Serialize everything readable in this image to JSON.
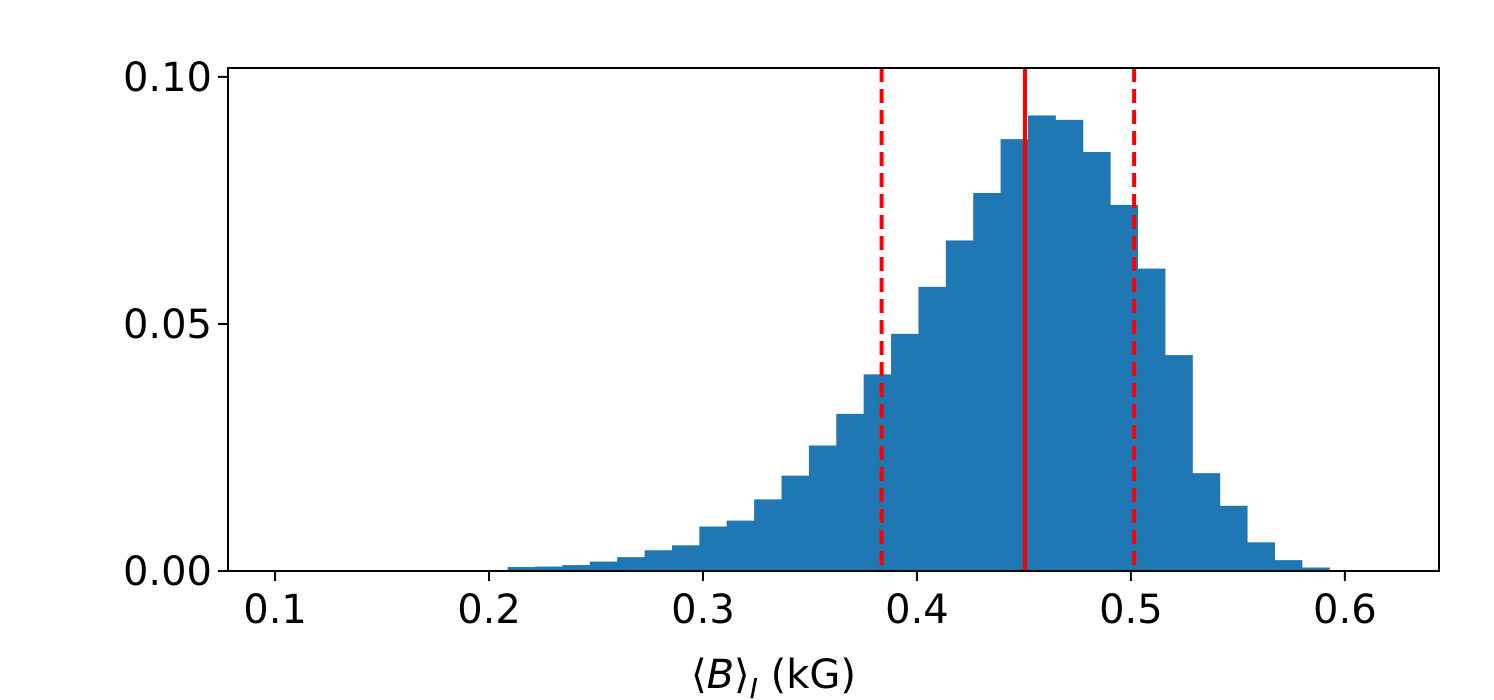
{
  "chart_data": {
    "type": "bar",
    "title": "",
    "xlabel": "⟨B⟩I (kG)",
    "xlabel_parts": {
      "open": "⟨",
      "var": "B",
      "close": "⟩",
      "sub": "I",
      "unit": " (kG)"
    },
    "ylabel": "",
    "xlim": [
      0.078,
      0.644
    ],
    "ylim": [
      0.0,
      0.1018
    ],
    "xticks": [
      0.1,
      0.2,
      0.3,
      0.4,
      0.5,
      0.6
    ],
    "xtick_labels": [
      "0.1",
      "0.2",
      "0.3",
      "0.4",
      "0.5",
      "0.6"
    ],
    "yticks": [
      0.0,
      0.05,
      0.1
    ],
    "ytick_labels": [
      "0.00",
      "0.05",
      "0.10"
    ],
    "grid": false,
    "bar_color": "#1f77b4",
    "bin_edges": [
      0.0935,
      0.1063,
      0.1191,
      0.1319,
      0.1447,
      0.1575,
      0.1703,
      0.1831,
      0.1959,
      0.2087,
      0.2215,
      0.2343,
      0.2471,
      0.2599,
      0.2727,
      0.2855,
      0.2983,
      0.3111,
      0.3239,
      0.3367,
      0.3495,
      0.3623,
      0.3751,
      0.3879,
      0.4007,
      0.4135,
      0.4263,
      0.4391,
      0.4519,
      0.4647,
      0.4775,
      0.4903,
      0.5031,
      0.5159,
      0.5287,
      0.5415,
      0.5543,
      0.5671,
      0.5799,
      0.5927,
      0.6055
    ],
    "values": [
      0.0,
      0.0,
      0.0,
      0.0,
      0.0,
      0.0,
      0.0,
      0.0,
      0.0002,
      0.0008,
      0.0009,
      0.0012,
      0.0019,
      0.0028,
      0.0042,
      0.0052,
      0.009,
      0.0102,
      0.0145,
      0.0193,
      0.0254,
      0.0318,
      0.0398,
      0.048,
      0.0575,
      0.0669,
      0.0765,
      0.0874,
      0.0922,
      0.0913,
      0.0848,
      0.0741,
      0.0612,
      0.0437,
      0.0198,
      0.0132,
      0.0058,
      0.0022,
      0.0007,
      0.0001
    ],
    "vlines": [
      {
        "x": 0.3835,
        "style": "dashed",
        "color": "#ff0000"
      },
      {
        "x": 0.4505,
        "style": "solid",
        "color": "#ff0000"
      },
      {
        "x": 0.5015,
        "style": "dashed",
        "color": "#ff0000"
      }
    ]
  }
}
